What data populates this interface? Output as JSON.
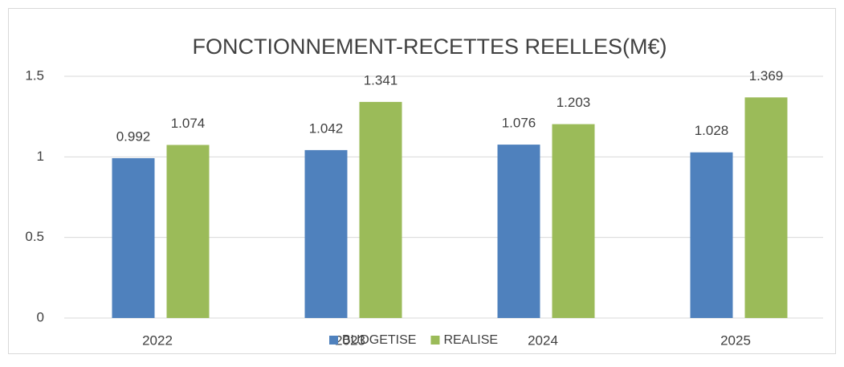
{
  "chart_data": {
    "type": "bar",
    "title": "FONCTIONNEMENT-RECETTES REELLES(M€)",
    "categories": [
      "2022",
      "2023",
      "2024",
      "2025"
    ],
    "series": [
      {
        "name": "BUDGETISE",
        "color": "#4f81bd",
        "values": [
          0.992,
          1.042,
          1.076,
          1.028
        ]
      },
      {
        "name": "REALISE",
        "color": "#9bbb59",
        "values": [
          1.074,
          1.341,
          1.203,
          1.369
        ]
      }
    ],
    "ylim": [
      0,
      1.5
    ],
    "yticks": [
      0,
      0.5,
      1,
      1.5
    ],
    "grid": true,
    "legend": "bottom"
  }
}
